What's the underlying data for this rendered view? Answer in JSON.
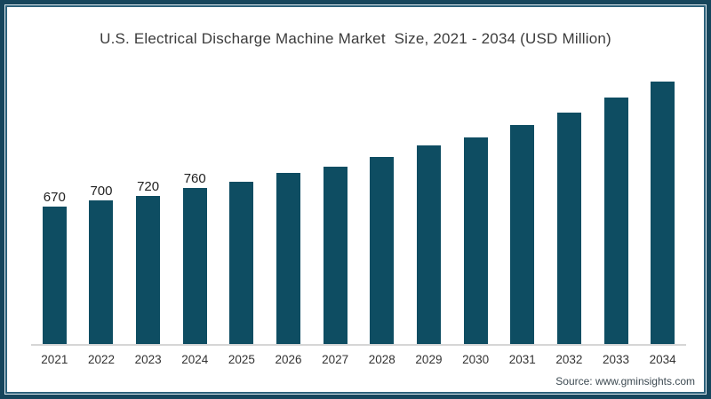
{
  "frame": {
    "outer_color": "#16455c",
    "gap_color": "#dce8ee",
    "inner_line_color": "#2b607a",
    "background": "#ffffff"
  },
  "chart_data": {
    "type": "bar",
    "title": "U.S. Electrical Discharge Machine Market  Size, 2021 - 2034 (USD Million)",
    "categories": [
      "2021",
      "2022",
      "2023",
      "2024",
      "2025",
      "2026",
      "2027",
      "2028",
      "2029",
      "2030",
      "2031",
      "2032",
      "2033",
      "2034"
    ],
    "values": [
      670,
      700,
      720,
      760,
      790,
      830,
      860,
      910,
      965,
      1005,
      1065,
      1125,
      1200,
      1275
    ],
    "data_labels": [
      "670",
      "700",
      "720",
      "760",
      "",
      "",
      "",
      "",
      "",
      "",
      "",
      "",
      "",
      ""
    ],
    "bar_color": "#0e4d62",
    "xlabel": "",
    "ylabel": "",
    "value_unit": "USD Million",
    "ylim": [
      0,
      1380
    ],
    "grid": false,
    "legend": null,
    "axis_line_color": "#d6d6d6",
    "label_color": "#333333",
    "data_label_color": "#222222"
  },
  "source": {
    "text": "Source: www.gminsights.com"
  }
}
